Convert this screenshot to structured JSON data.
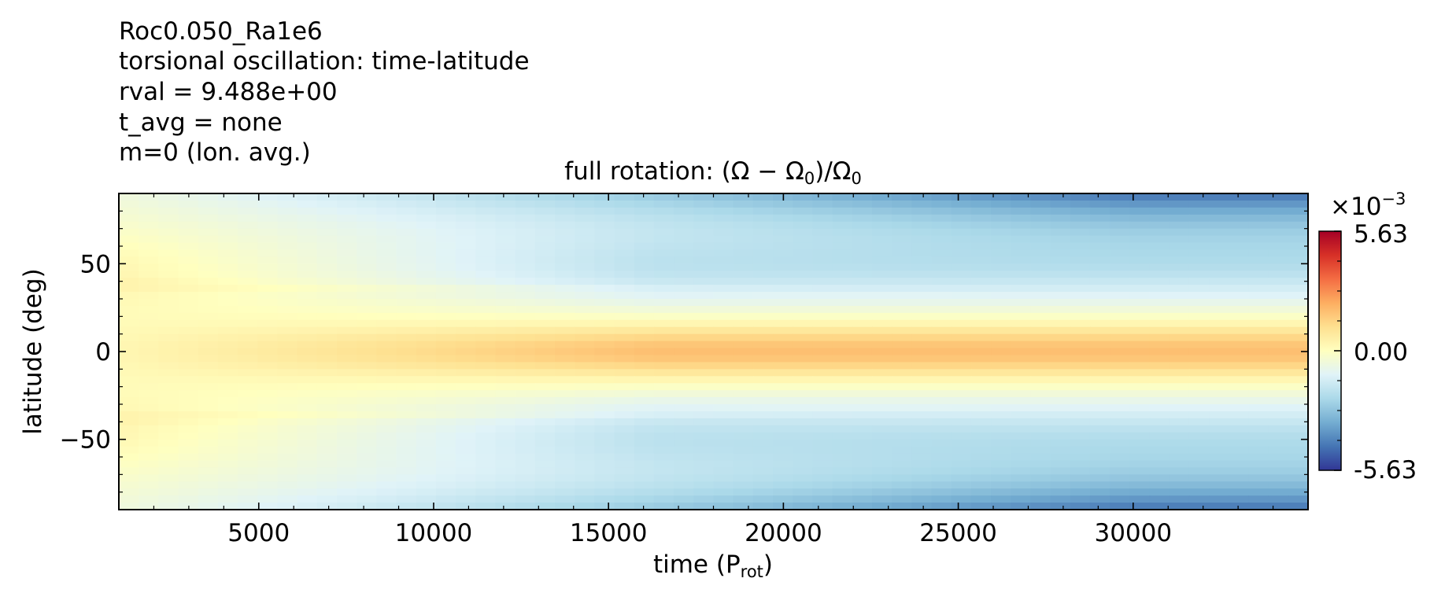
{
  "header": {
    "lines": [
      "Roc0.050_Ra1e6",
      "torsional oscillation: time-latitude",
      "rval = 9.488e+00",
      "t_avg = none",
      "m=0 (lon. avg.)"
    ]
  },
  "chart_data": {
    "type": "heatmap",
    "title_prefix": "full rotation: ",
    "title_math": [
      "(Ω − Ω",
      "0",
      ")/Ω",
      "0"
    ],
    "xlabel_prefix": "time (P",
    "xlabel_sub": "rot",
    "xlabel_suffix": ")",
    "ylabel": "latitude (deg)",
    "xlim": [
      1000,
      35000
    ],
    "ylim": [
      -90,
      90
    ],
    "xticks": [
      5000,
      10000,
      15000,
      20000,
      25000,
      30000
    ],
    "xtick_labels": [
      "5000",
      "10000",
      "15000",
      "20000",
      "25000",
      "30000"
    ],
    "yticks": [
      50,
      0,
      -50
    ],
    "ytick_labels": [
      "50",
      "0",
      "−50"
    ],
    "colormap": "RdYlBu_r",
    "colorbar": {
      "multiplier": "×10",
      "exponent": "−3",
      "max_label": "5.63",
      "mid_label": "0.00",
      "min_label": "-5.63",
      "vmin": -5.63,
      "vmax": 5.63
    },
    "description_of_field": {
      "equator_band": "positive (orange), strengthening with time",
      "mid_latitudes": "near zero to slightly positive early, becoming negative later",
      "high_latitudes": "strongly negative (dark blue), deepening with time"
    }
  }
}
